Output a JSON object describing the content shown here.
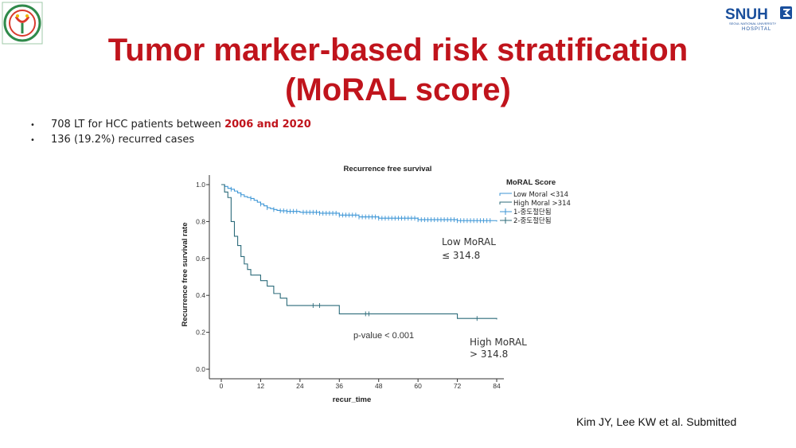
{
  "slide": {
    "title_line1": "Tumor marker-based risk stratification",
    "title_line2": "(MoRAL score)",
    "bullets": [
      {
        "prefix": "708 LT for HCC patients between ",
        "highlight": "2006 and 2020"
      },
      {
        "prefix": "136 (19.2%) recurred cases",
        "highlight": ""
      }
    ],
    "citation": "Kim JY, Lee KW et al. Submitted",
    "logo_right_text": "SNUH",
    "logo_right_sub": "SEOUL NATIONAL UNIVERSITY",
    "logo_right_hospital": "HOSPITAL",
    "colors": {
      "title": "#c0141c",
      "low_curve": "#3d96d6",
      "high_curve": "#2c6b7a"
    }
  },
  "chart_data": {
    "type": "line",
    "title": "Recurrence free survival",
    "xlabel": "recur_time",
    "ylabel": "Recurrence free survival rate",
    "xlim": [
      0,
      84
    ],
    "ylim": [
      0.0,
      1.0
    ],
    "x_ticks": [
      "0",
      "12",
      "24",
      "36",
      "48",
      "60",
      "72",
      "84"
    ],
    "y_ticks": [
      "0.0",
      "0.2",
      "0.4",
      "0.6",
      "0.8",
      "1.0"
    ],
    "legend_title": "MoRAL Score",
    "legend_position": "top-right",
    "legend": [
      "Low Moral <314",
      "High Moral >314",
      "1-중도절단됨",
      "2-중도절단됨"
    ],
    "series": [
      {
        "name": "Low Moral <314",
        "step": true,
        "x": [
          0,
          1,
          2,
          3,
          4,
          5,
          6,
          7,
          8,
          9,
          10,
          11,
          12,
          13,
          14,
          15,
          16,
          17,
          18,
          20,
          24,
          30,
          36,
          42,
          48,
          60,
          72,
          84
        ],
        "y": [
          1.0,
          0.99,
          0.98,
          0.975,
          0.965,
          0.955,
          0.945,
          0.935,
          0.93,
          0.925,
          0.915,
          0.905,
          0.895,
          0.885,
          0.875,
          0.87,
          0.865,
          0.86,
          0.858,
          0.855,
          0.85,
          0.845,
          0.835,
          0.825,
          0.818,
          0.81,
          0.805,
          0.8
        ],
        "censor_x": [
          3,
          6,
          9,
          12,
          14,
          16,
          18,
          19,
          20,
          21,
          22,
          23,
          25,
          26,
          27,
          28,
          29,
          30,
          31,
          32,
          33,
          34,
          35,
          36,
          37,
          38,
          39,
          40,
          41,
          42,
          43,
          44,
          45,
          46,
          47,
          48,
          49,
          50,
          51,
          52,
          53,
          54,
          55,
          56,
          57,
          58,
          59,
          60,
          61,
          62,
          63,
          64,
          65,
          66,
          67,
          68,
          69,
          70,
          71,
          72,
          73,
          74,
          75,
          76,
          77,
          78,
          79,
          80,
          81,
          82
        ]
      },
      {
        "name": "High Moral >314",
        "step": true,
        "x": [
          0,
          1,
          2,
          3,
          4,
          5,
          6,
          7,
          8,
          9,
          10,
          12,
          14,
          16,
          18,
          20,
          30,
          36,
          72,
          84
        ],
        "y": [
          1.0,
          0.96,
          0.93,
          0.8,
          0.72,
          0.67,
          0.61,
          0.57,
          0.54,
          0.51,
          0.51,
          0.48,
          0.45,
          0.41,
          0.385,
          0.345,
          0.345,
          0.3,
          0.275,
          0.27
        ],
        "censor_x": [
          28,
          30,
          44,
          45,
          78
        ]
      }
    ],
    "annotations": [
      {
        "text_line1": "Low MoRAL",
        "text_line2": "≤ 314.8"
      },
      {
        "text_line1": "p-value < 0.001",
        "text_line2": ""
      },
      {
        "text_line1": "High MoRAL",
        "text_line2": "> 314.8"
      }
    ]
  }
}
